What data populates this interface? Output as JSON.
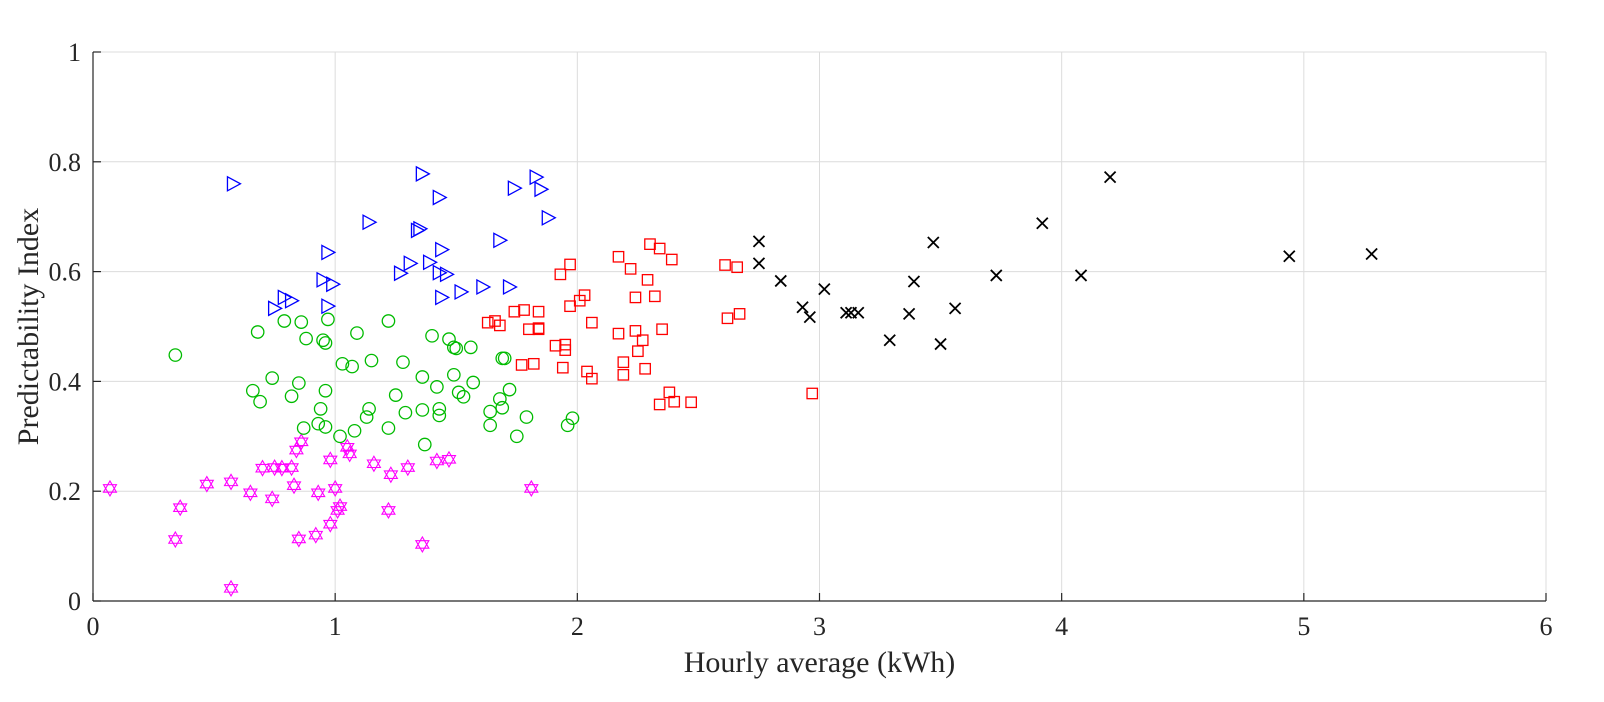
{
  "chart_data": {
    "type": "scatter",
    "title": "",
    "xlabel": "Hourly average (kWh)",
    "ylabel": "Predictability Index",
    "xlim": [
      0,
      6
    ],
    "ylim": [
      0,
      1
    ],
    "xticks": [
      "0",
      "1",
      "2",
      "3",
      "4",
      "5",
      "6"
    ],
    "yticks": [
      "0",
      "0.2",
      "0.4",
      "0.6",
      "0.8",
      "1"
    ],
    "grid": true,
    "series": [
      {
        "marker": "hexagram",
        "color": "#ff00ff",
        "points": [
          [
            0.07,
            0.205
          ],
          [
            0.34,
            0.112
          ],
          [
            0.36,
            0.17
          ],
          [
            0.47,
            0.213
          ],
          [
            0.57,
            0.217
          ],
          [
            0.57,
            0.023
          ],
          [
            0.65,
            0.197
          ],
          [
            0.7,
            0.242
          ],
          [
            0.74,
            0.186
          ],
          [
            0.75,
            0.243
          ],
          [
            0.78,
            0.242
          ],
          [
            0.82,
            0.243
          ],
          [
            0.83,
            0.21
          ],
          [
            0.84,
            0.275
          ],
          [
            0.85,
            0.113
          ],
          [
            0.86,
            0.29
          ],
          [
            0.92,
            0.12
          ],
          [
            0.93,
            0.197
          ],
          [
            0.98,
            0.14
          ],
          [
            0.98,
            0.257
          ],
          [
            1.0,
            0.205
          ],
          [
            1.01,
            0.165
          ],
          [
            1.02,
            0.172
          ],
          [
            1.05,
            0.28
          ],
          [
            1.06,
            0.268
          ],
          [
            1.16,
            0.25
          ],
          [
            1.22,
            0.165
          ],
          [
            1.23,
            0.23
          ],
          [
            1.3,
            0.243
          ],
          [
            1.36,
            0.103
          ],
          [
            1.42,
            0.255
          ],
          [
            1.47,
            0.258
          ],
          [
            1.81,
            0.205
          ]
        ]
      },
      {
        "marker": "circle",
        "color": "#00bb00",
        "points": [
          [
            0.34,
            0.448
          ],
          [
            0.66,
            0.383
          ],
          [
            0.68,
            0.49
          ],
          [
            0.69,
            0.363
          ],
          [
            0.74,
            0.406
          ],
          [
            0.79,
            0.51
          ],
          [
            0.82,
            0.373
          ],
          [
            0.85,
            0.397
          ],
          [
            0.86,
            0.508
          ],
          [
            0.87,
            0.315
          ],
          [
            0.88,
            0.478
          ],
          [
            0.93,
            0.323
          ],
          [
            0.94,
            0.35
          ],
          [
            0.95,
            0.475
          ],
          [
            0.96,
            0.317
          ],
          [
            0.96,
            0.47
          ],
          [
            0.96,
            0.383
          ],
          [
            0.97,
            0.513
          ],
          [
            1.02,
            0.3
          ],
          [
            1.03,
            0.432
          ],
          [
            1.07,
            0.427
          ],
          [
            1.08,
            0.31
          ],
          [
            1.09,
            0.488
          ],
          [
            1.13,
            0.335
          ],
          [
            1.14,
            0.35
          ],
          [
            1.15,
            0.438
          ],
          [
            1.22,
            0.51
          ],
          [
            1.22,
            0.315
          ],
          [
            1.25,
            0.375
          ],
          [
            1.28,
            0.435
          ],
          [
            1.29,
            0.343
          ],
          [
            1.36,
            0.408
          ],
          [
            1.36,
            0.348
          ],
          [
            1.37,
            0.285
          ],
          [
            1.4,
            0.483
          ],
          [
            1.42,
            0.39
          ],
          [
            1.43,
            0.35
          ],
          [
            1.43,
            0.338
          ],
          [
            1.47,
            0.477
          ],
          [
            1.49,
            0.462
          ],
          [
            1.49,
            0.412
          ],
          [
            1.5,
            0.46
          ],
          [
            1.51,
            0.38
          ],
          [
            1.53,
            0.372
          ],
          [
            1.56,
            0.462
          ],
          [
            1.57,
            0.398
          ],
          [
            1.64,
            0.345
          ],
          [
            1.64,
            0.32
          ],
          [
            1.68,
            0.368
          ],
          [
            1.69,
            0.352
          ],
          [
            1.69,
            0.442
          ],
          [
            1.7,
            0.442
          ],
          [
            1.72,
            0.385
          ],
          [
            1.75,
            0.3
          ],
          [
            1.79,
            0.335
          ],
          [
            1.96,
            0.32
          ],
          [
            1.98,
            0.333
          ]
        ]
      },
      {
        "marker": "triangle-right",
        "color": "#0000ff",
        "points": [
          [
            0.58,
            0.76
          ],
          [
            0.75,
            0.533
          ],
          [
            0.79,
            0.553
          ],
          [
            0.82,
            0.547
          ],
          [
            0.95,
            0.585
          ],
          [
            0.97,
            0.635
          ],
          [
            0.97,
            0.537
          ],
          [
            0.99,
            0.577
          ],
          [
            1.14,
            0.69
          ],
          [
            1.27,
            0.597
          ],
          [
            1.31,
            0.615
          ],
          [
            1.34,
            0.675
          ],
          [
            1.35,
            0.678
          ],
          [
            1.36,
            0.778
          ],
          [
            1.39,
            0.617
          ],
          [
            1.43,
            0.735
          ],
          [
            1.43,
            0.598
          ],
          [
            1.44,
            0.64
          ],
          [
            1.44,
            0.553
          ],
          [
            1.46,
            0.595
          ],
          [
            1.52,
            0.563
          ],
          [
            1.61,
            0.572
          ],
          [
            1.68,
            0.657
          ],
          [
            1.72,
            0.572
          ],
          [
            1.74,
            0.752
          ],
          [
            1.83,
            0.772
          ],
          [
            1.85,
            0.75
          ],
          [
            1.88,
            0.698
          ]
        ]
      },
      {
        "marker": "square",
        "color": "#ff0000",
        "points": [
          [
            1.63,
            0.507
          ],
          [
            1.66,
            0.51
          ],
          [
            1.68,
            0.502
          ],
          [
            1.74,
            0.527
          ],
          [
            1.77,
            0.43
          ],
          [
            1.78,
            0.53
          ],
          [
            1.8,
            0.495
          ],
          [
            1.82,
            0.432
          ],
          [
            1.84,
            0.527
          ],
          [
            1.84,
            0.495
          ],
          [
            1.84,
            0.497
          ],
          [
            1.91,
            0.465
          ],
          [
            1.93,
            0.595
          ],
          [
            1.94,
            0.425
          ],
          [
            1.95,
            0.467
          ],
          [
            1.95,
            0.457
          ],
          [
            1.97,
            0.537
          ],
          [
            1.97,
            0.613
          ],
          [
            2.01,
            0.547
          ],
          [
            2.03,
            0.557
          ],
          [
            2.04,
            0.418
          ],
          [
            2.06,
            0.507
          ],
          [
            2.06,
            0.405
          ],
          [
            2.17,
            0.487
          ],
          [
            2.17,
            0.627
          ],
          [
            2.19,
            0.435
          ],
          [
            2.19,
            0.412
          ],
          [
            2.22,
            0.605
          ],
          [
            2.24,
            0.553
          ],
          [
            2.24,
            0.492
          ],
          [
            2.25,
            0.455
          ],
          [
            2.27,
            0.475
          ],
          [
            2.28,
            0.423
          ],
          [
            2.29,
            0.585
          ],
          [
            2.3,
            0.65
          ],
          [
            2.32,
            0.555
          ],
          [
            2.34,
            0.358
          ],
          [
            2.34,
            0.642
          ],
          [
            2.35,
            0.495
          ],
          [
            2.38,
            0.38
          ],
          [
            2.39,
            0.622
          ],
          [
            2.4,
            0.363
          ],
          [
            2.47,
            0.362
          ],
          [
            2.61,
            0.612
          ],
          [
            2.62,
            0.515
          ],
          [
            2.66,
            0.608
          ],
          [
            2.67,
            0.523
          ],
          [
            2.97,
            0.378
          ]
        ]
      },
      {
        "marker": "x",
        "color": "#000000",
        "points": [
          [
            2.75,
            0.655
          ],
          [
            2.75,
            0.615
          ],
          [
            2.84,
            0.583
          ],
          [
            2.93,
            0.535
          ],
          [
            2.96,
            0.517
          ],
          [
            3.02,
            0.568
          ],
          [
            3.11,
            0.525
          ],
          [
            3.13,
            0.525
          ],
          [
            3.16,
            0.525
          ],
          [
            3.29,
            0.475
          ],
          [
            3.37,
            0.523
          ],
          [
            3.39,
            0.582
          ],
          [
            3.47,
            0.653
          ],
          [
            3.5,
            0.468
          ],
          [
            3.56,
            0.533
          ],
          [
            3.73,
            0.593
          ],
          [
            3.92,
            0.688
          ],
          [
            4.08,
            0.593
          ],
          [
            4.2,
            0.772
          ],
          [
            4.94,
            0.628
          ],
          [
            5.28,
            0.632
          ]
        ]
      }
    ]
  }
}
